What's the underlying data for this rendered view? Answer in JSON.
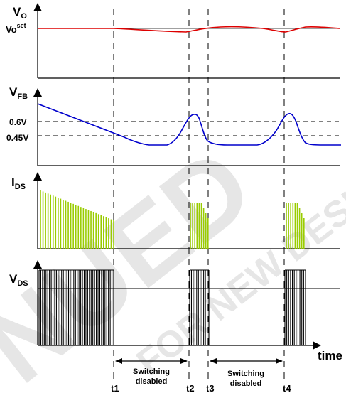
{
  "watermark": {
    "line1": "NUED",
    "line2": "FOR NEW DESIGN",
    "color": "#e6e6e6"
  },
  "panels": {
    "vo": {
      "label_main": "V",
      "label_sub": "O",
      "setpoint_main": "Vo",
      "setpoint_sup": "set",
      "trace_color": "#dd0000"
    },
    "vfb": {
      "label_main": "V",
      "label_sub": "FB",
      "level_high": "0.6V",
      "level_low": "0.45V",
      "trace_color": "#0000cc"
    },
    "ids": {
      "label_main": "I",
      "label_sub": "DS",
      "pulse_color": "#99cc00"
    },
    "vds": {
      "label_main": "V",
      "label_sub": "DS",
      "pulse_color": "#000000"
    }
  },
  "time_axis": {
    "label": "time",
    "markers": [
      "t1",
      "t2",
      "t3",
      "t4"
    ],
    "intervals": [
      {
        "line1": "Switching",
        "line2": "disabled"
      },
      {
        "line1": "Switching",
        "line2": "disabled"
      }
    ]
  }
}
